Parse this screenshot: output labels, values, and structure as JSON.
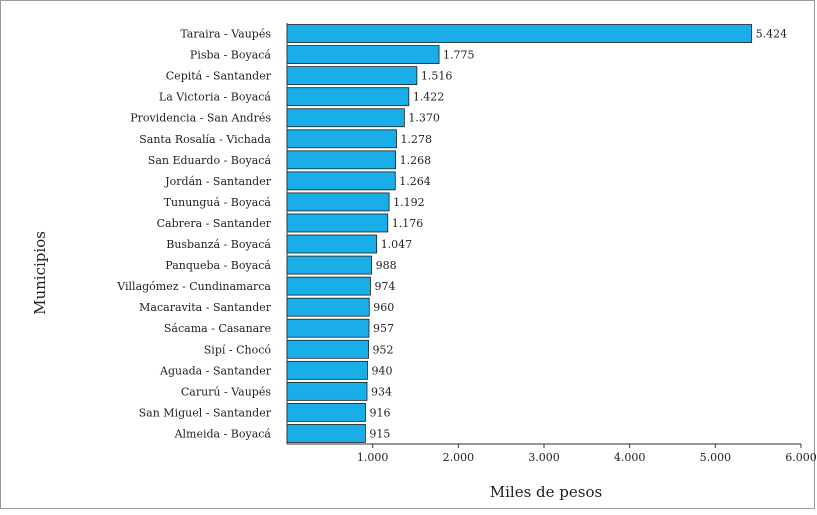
{
  "chart_data": {
    "type": "bar",
    "orientation": "horizontal",
    "xlabel": "Miles de pesos",
    "ylabel": "Municipios",
    "xlim": [
      0,
      6000
    ],
    "x_ticks": [
      "1.000",
      "2.000",
      "3.000",
      "4.000",
      "5.000",
      "6.000"
    ],
    "x_tick_values": [
      1000,
      2000,
      3000,
      4000,
      5000,
      6000
    ],
    "grid": false,
    "bar_color": "#1aaee8",
    "categories": [
      "Taraira - Vaupés",
      "Pisba - Boyacá",
      "Cepitá - Santander",
      "La Victoria - Boyacá",
      "Providencia - San Andrés",
      "Santa Rosalía - Vichada",
      "San Eduardo - Boyacá",
      "Jordán - Santander",
      "Tununguá - Boyacá",
      "Cabrera - Santander",
      "Busbanzá - Boyacá",
      "Panqueba - Boyacá",
      "Villagómez - Cundinamarca",
      "Macaravita - Santander",
      "Sácama - Casanare",
      "Sipí - Chocó",
      "Aguada - Santander",
      "Carurú - Vaupés",
      "San Miguel - Santander",
      "Almeida - Boyacá"
    ],
    "values": [
      5424,
      1775,
      1516,
      1422,
      1370,
      1278,
      1268,
      1264,
      1192,
      1176,
      1047,
      988,
      974,
      960,
      957,
      952,
      940,
      934,
      916,
      915
    ],
    "value_labels": [
      "5.424",
      "1.775",
      "1.516",
      "1.422",
      "1.370",
      "1.278",
      "1.268",
      "1.264",
      "1.192",
      "1.176",
      "1.047",
      "988",
      "974",
      "960",
      "957",
      "952",
      "940",
      "934",
      "916",
      "915"
    ]
  }
}
